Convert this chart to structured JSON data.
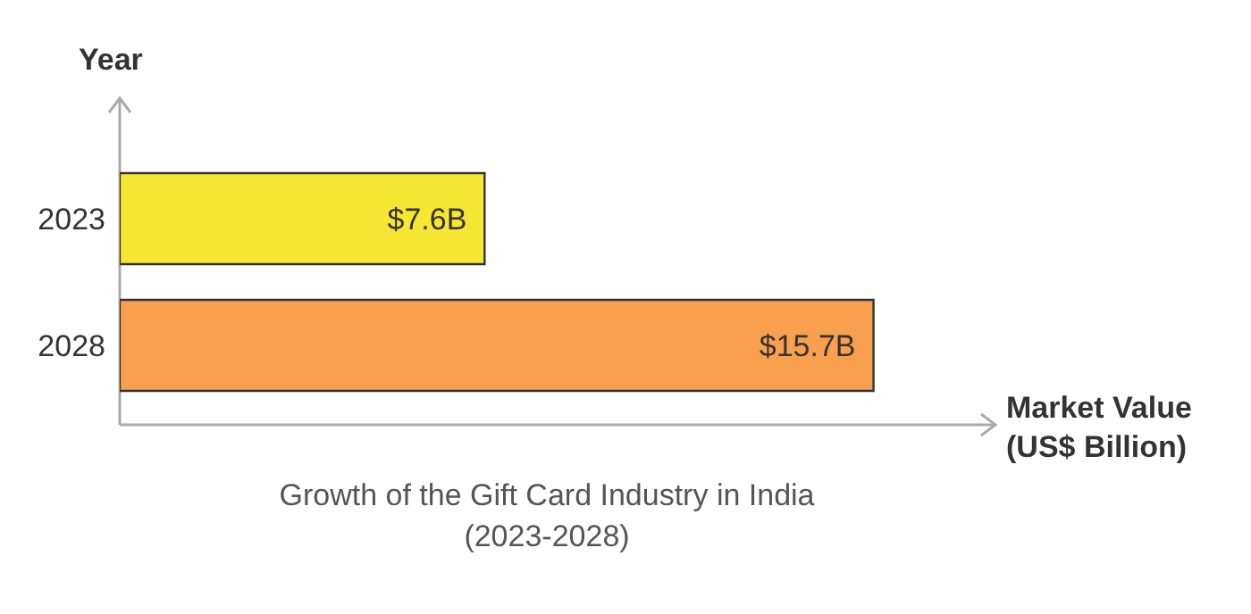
{
  "chart_data": {
    "type": "bar",
    "orientation": "horizontal",
    "title": "Growth of the Gift Card Industry in India\n(2023-2028)",
    "ylabel": "Year",
    "xlabel": "Market Value\n(US$ Billion)",
    "categories": [
      "2023",
      "2028"
    ],
    "values": [
      7.6,
      15.7
    ],
    "colors": [
      "#f7e733",
      "#f9a04e"
    ],
    "value_labels": [
      "$7.6B",
      "$15.7B"
    ]
  }
}
